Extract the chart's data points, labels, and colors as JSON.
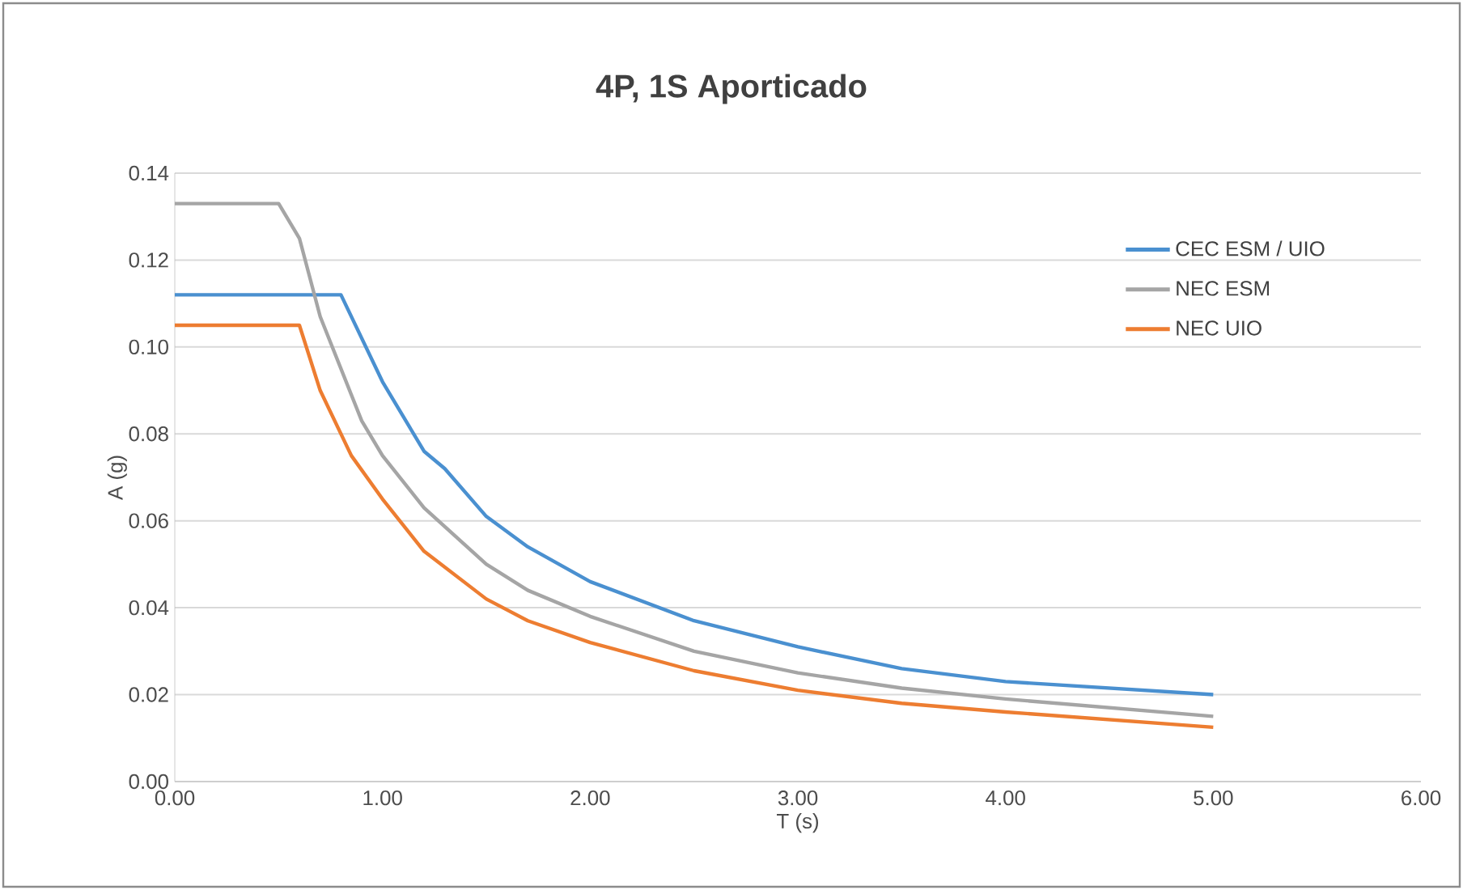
{
  "chart_data": {
    "type": "line",
    "title": "4P, 1S Aporticado",
    "xlabel": "T (s)",
    "ylabel": "A (g)",
    "xlim": [
      0,
      6
    ],
    "ylim": [
      0,
      0.14
    ],
    "xticks": [
      {
        "value": 0,
        "label": "0.00"
      },
      {
        "value": 1,
        "label": "1.00"
      },
      {
        "value": 2,
        "label": "2.00"
      },
      {
        "value": 3,
        "label": "3.00"
      },
      {
        "value": 4,
        "label": "4.00"
      },
      {
        "value": 5,
        "label": "5.00"
      },
      {
        "value": 6,
        "label": "6.00"
      }
    ],
    "yticks": [
      {
        "value": 0,
        "label": "0.00"
      },
      {
        "value": 0.02,
        "label": "0.02"
      },
      {
        "value": 0.04,
        "label": "0.04"
      },
      {
        "value": 0.06,
        "label": "0.06"
      },
      {
        "value": 0.08,
        "label": "0.08"
      },
      {
        "value": 0.1,
        "label": "0.10"
      },
      {
        "value": 0.12,
        "label": "0.12"
      },
      {
        "value": 0.14,
        "label": "0.14"
      }
    ],
    "grid": "y",
    "legend": "top right",
    "marker": "none",
    "line_style": "solid",
    "series": [
      {
        "name": "CEC ESM / UIO",
        "color": "#4a90d0",
        "x": [
          0,
          0.8,
          1.0,
          1.2,
          1.3,
          1.5,
          1.7,
          2.0,
          2.5,
          3.0,
          3.5,
          4.0,
          5.0
        ],
        "values": [
          0.112,
          0.112,
          0.092,
          0.076,
          0.072,
          0.061,
          0.054,
          0.046,
          0.037,
          0.031,
          0.026,
          0.023,
          0.02
        ]
      },
      {
        "name": "NEC ESM",
        "color": "#a5a5a5",
        "x": [
          0,
          0.5,
          0.6,
          0.7,
          0.9,
          1.0,
          1.2,
          1.5,
          1.7,
          2.0,
          2.5,
          3.0,
          3.5,
          4.0,
          5.0
        ],
        "values": [
          0.133,
          0.133,
          0.125,
          0.107,
          0.083,
          0.075,
          0.063,
          0.05,
          0.044,
          0.038,
          0.03,
          0.025,
          0.0215,
          0.019,
          0.015
        ]
      },
      {
        "name": "NEC UIO",
        "color": "#ed7d31",
        "x": [
          0,
          0.6,
          0.7,
          0.85,
          1.0,
          1.2,
          1.5,
          1.7,
          2.0,
          2.5,
          3.0,
          3.5,
          4.0,
          5.0
        ],
        "values": [
          0.105,
          0.105,
          0.09,
          0.075,
          0.065,
          0.053,
          0.042,
          0.037,
          0.032,
          0.0255,
          0.021,
          0.018,
          0.016,
          0.0125
        ]
      }
    ]
  }
}
